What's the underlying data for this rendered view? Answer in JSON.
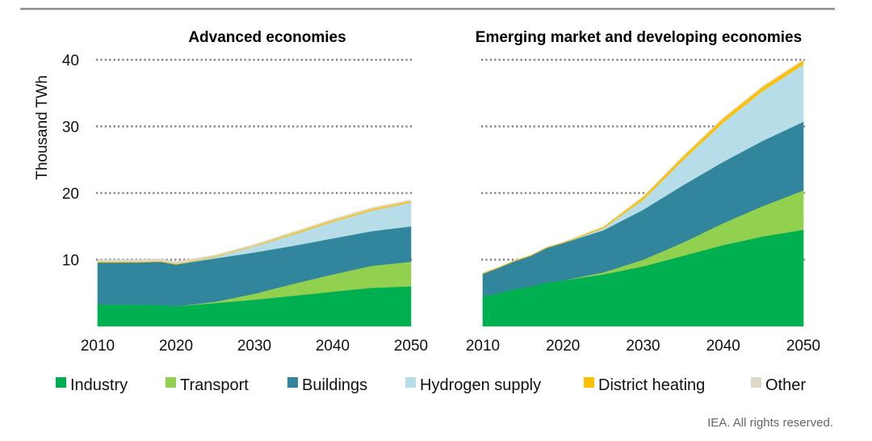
{
  "chart_data": [
    {
      "type": "area",
      "stacked": true,
      "title": "Advanced economies",
      "ylabel": "Thousand TWh",
      "xlabel": "",
      "xlim": [
        2010,
        2050
      ],
      "ylim": [
        0,
        40
      ],
      "x_ticks": [
        2010,
        2020,
        2030,
        2040,
        2050
      ],
      "y_ticks": [
        10,
        20,
        30,
        40
      ],
      "grid": "y-dotted",
      "x": [
        2010,
        2015,
        2018,
        2020,
        2025,
        2030,
        2035,
        2040,
        2045,
        2050
      ],
      "series": [
        {
          "name": "Industry",
          "values": [
            3.3,
            3.3,
            3.2,
            3.0,
            3.5,
            4.0,
            4.6,
            5.2,
            5.8,
            6.0
          ]
        },
        {
          "name": "Transport",
          "values": [
            0.0,
            0.0,
            0.0,
            0.0,
            0.2,
            0.9,
            1.8,
            2.6,
            3.3,
            3.7
          ]
        },
        {
          "name": "Buildings",
          "values": [
            6.3,
            6.3,
            6.5,
            6.3,
            6.5,
            6.2,
            5.7,
            5.4,
            5.2,
            5.3
          ]
        },
        {
          "name": "Hydrogen supply",
          "values": [
            0.0,
            0.0,
            0.0,
            0.0,
            0.2,
            0.9,
            1.7,
            2.5,
            3.1,
            3.6
          ]
        },
        {
          "name": "District heating",
          "values": [
            0.1,
            0.1,
            0.1,
            0.1,
            0.1,
            0.1,
            0.2,
            0.2,
            0.2,
            0.2
          ]
        },
        {
          "name": "Other",
          "values": [
            0.3,
            0.3,
            0.3,
            0.3,
            0.2,
            0.2,
            0.2,
            0.2,
            0.2,
            0.2
          ]
        }
      ]
    },
    {
      "type": "area",
      "stacked": true,
      "title": "Emerging market and developing economies",
      "ylabel": "",
      "xlabel": "",
      "xlim": [
        2010,
        2050
      ],
      "ylim": [
        0,
        40
      ],
      "x_ticks": [
        2010,
        2020,
        2030,
        2040,
        2050
      ],
      "y_ticks": [
        10,
        20,
        30,
        40
      ],
      "grid": "y-dotted",
      "x": [
        2010,
        2012,
        2014,
        2016,
        2018,
        2020,
        2025,
        2030,
        2035,
        2040,
        2045,
        2050
      ],
      "series": [
        {
          "name": "Industry",
          "values": [
            4.5,
            5.0,
            5.6,
            6.0,
            6.6,
            6.9,
            7.8,
            9.0,
            10.6,
            12.2,
            13.5,
            14.5
          ]
        },
        {
          "name": "Transport",
          "values": [
            0.0,
            0.0,
            0.0,
            0.0,
            0.0,
            0.0,
            0.3,
            1.0,
            2.0,
            3.3,
            4.6,
            5.9
          ]
        },
        {
          "name": "Buildings",
          "values": [
            3.4,
            3.8,
            4.2,
            4.6,
            5.2,
            5.6,
            6.3,
            7.5,
            8.6,
            9.2,
            9.8,
            10.3
          ]
        },
        {
          "name": "Hydrogen supply",
          "values": [
            0.0,
            0.0,
            0.0,
            0.0,
            0.0,
            0.0,
            0.3,
            1.5,
            3.8,
            5.9,
            7.5,
            8.6
          ]
        },
        {
          "name": "District heating",
          "values": [
            0.1,
            0.1,
            0.1,
            0.1,
            0.1,
            0.1,
            0.2,
            0.4,
            0.5,
            0.6,
            0.6,
            0.6
          ]
        },
        {
          "name": "Other",
          "values": [
            0.0,
            0.0,
            0.0,
            0.0,
            0.0,
            0.0,
            0.0,
            0.1,
            0.1,
            0.1,
            0.1,
            0.1
          ]
        }
      ]
    }
  ],
  "legend": {
    "items": [
      {
        "name": "Industry",
        "color": "#00b050"
      },
      {
        "name": "Transport",
        "color": "#92d050"
      },
      {
        "name": "Buildings",
        "color": "#31859c"
      },
      {
        "name": "Hydrogen supply",
        "color": "#b7dee8"
      },
      {
        "name": "District heating",
        "color": "#ffc000"
      },
      {
        "name": "Other",
        "color": "#ddd9c4"
      }
    ]
  },
  "credit": "IEA. All rights reserved."
}
